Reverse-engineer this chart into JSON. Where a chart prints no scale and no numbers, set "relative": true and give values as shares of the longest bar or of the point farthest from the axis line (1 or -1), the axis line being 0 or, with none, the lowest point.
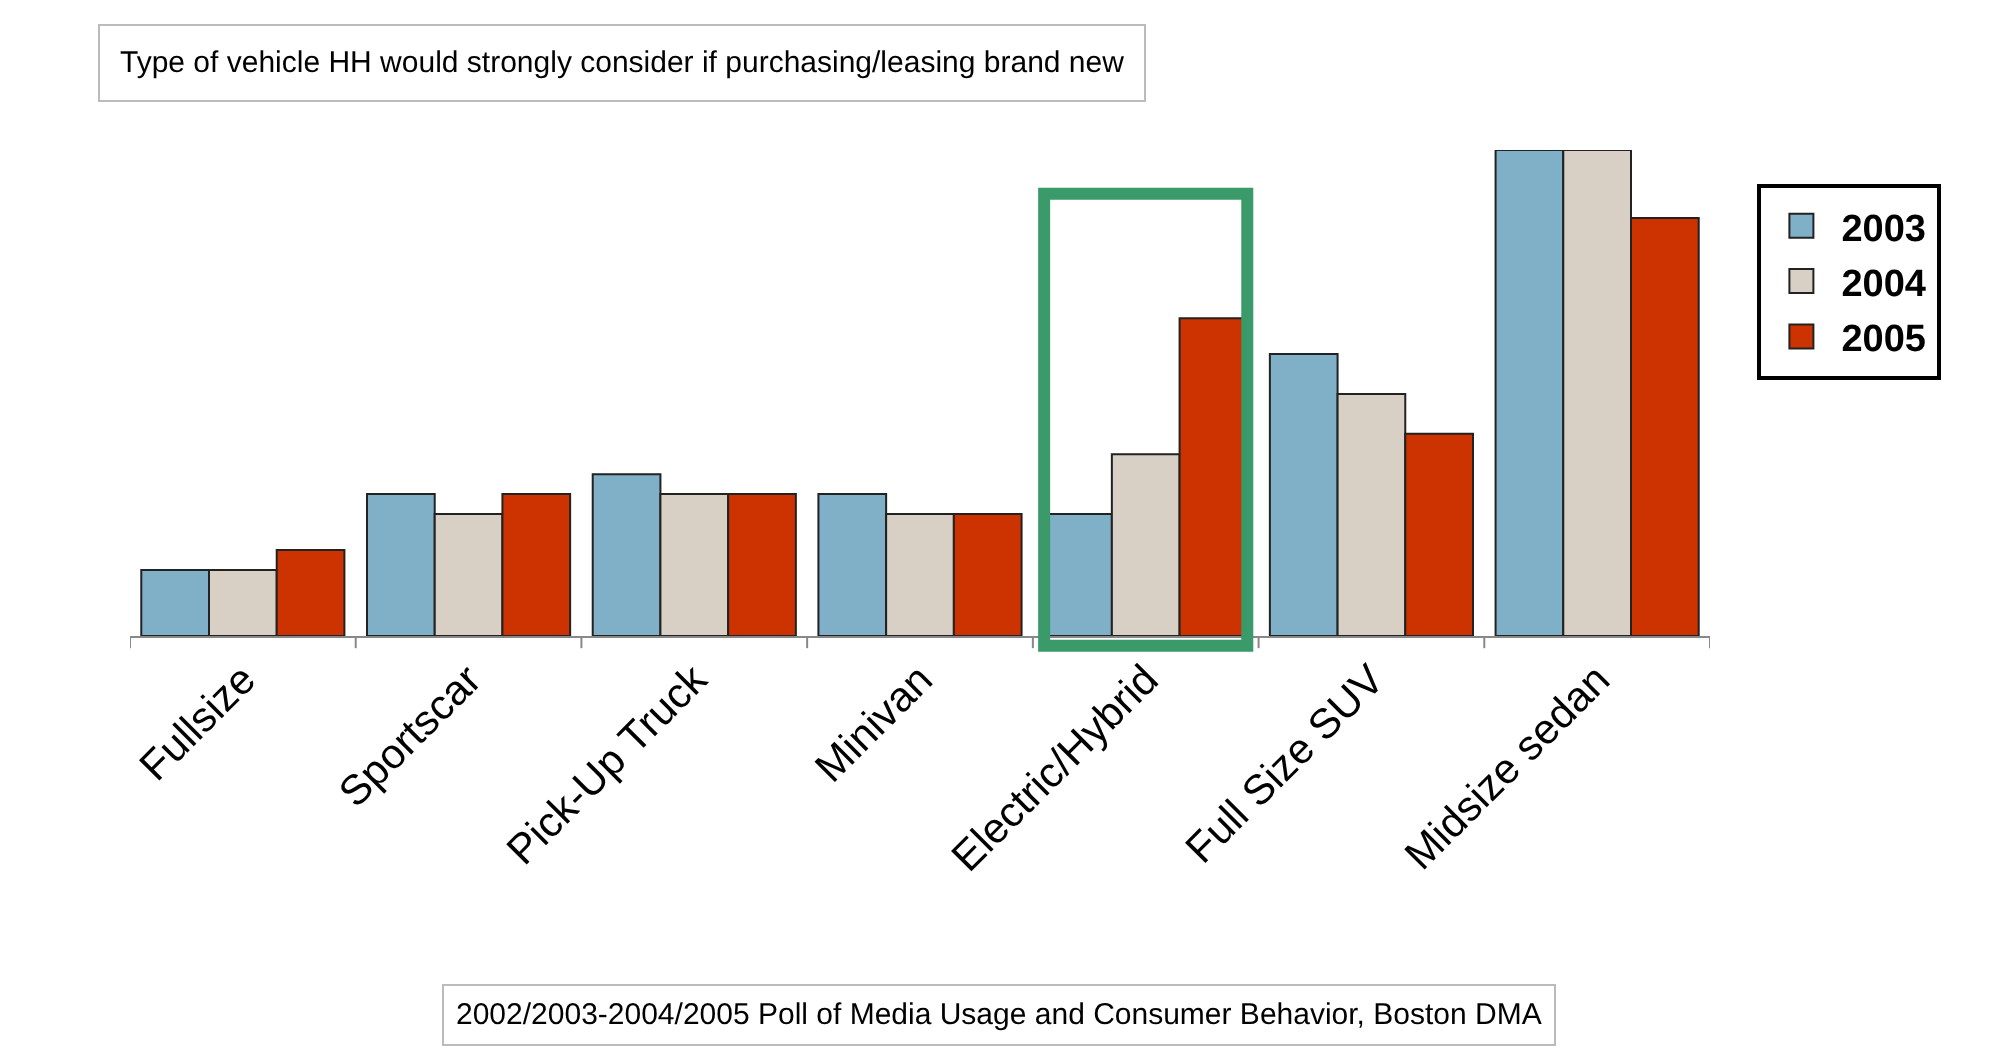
{
  "chart_data": {
    "type": "bar",
    "title": "Type of vehicle HH would strongly consider if purchasing/leasing brand new",
    "relative": true,
    "categories": [
      "Fullsize",
      "Sportscar",
      "Pick-Up Truck",
      "Minivan",
      "Electric/Hybrid",
      "Full Size SUV",
      "Midsize sedan"
    ],
    "series": [
      {
        "name": "2003",
        "color": "#7fb0c8",
        "values": [
          0.136,
          0.292,
          0.333,
          0.292,
          0.251,
          0.58,
          1
        ]
      },
      {
        "name": "2004",
        "color": "#d8d0c4",
        "values": [
          0.136,
          0.251,
          0.292,
          0.251,
          0.374,
          0.498,
          1
        ]
      },
      {
        "name": "2005",
        "color": "#cc3300",
        "values": [
          0.177,
          0.292,
          0.292,
          0.251,
          0.654,
          0.416,
          0.86
        ]
      }
    ],
    "legend": "right",
    "annotations": [
      "2002/2003-2004/2005 Poll of Media Usage and Consumer Behavior, Boston DMA"
    ]
  }
}
